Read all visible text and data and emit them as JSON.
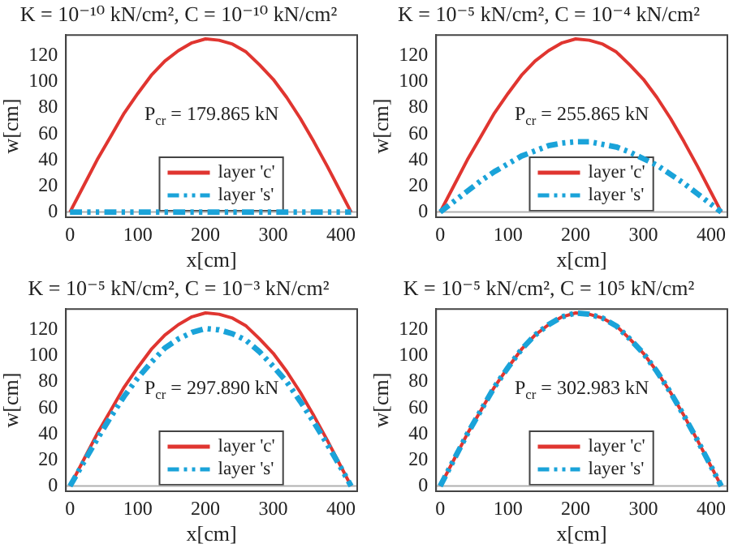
{
  "chart_data": [
    {
      "type": "line",
      "title": "K = 10⁻¹⁰ kN/cm², C = 10⁻¹⁰ kN/cm²",
      "xlabel": "x[cm]",
      "ylabel": "w[cm]",
      "xlim": [
        -6,
        424
      ],
      "ylim": [
        -4,
        136
      ],
      "xticks": [
        0,
        100,
        200,
        300,
        400
      ],
      "yticks": [
        0,
        20,
        40,
        60,
        80,
        100,
        120
      ],
      "grid": false,
      "legend": "bottom",
      "annotations": [
        "P$_{cr}$ = 179.865 kN"
      ],
      "ref_lines": [
        {
          "axis": "y",
          "value": 0,
          "color": "#b0b0b0"
        }
      ],
      "x": [
        0,
        20,
        40,
        60,
        80,
        100,
        120,
        140,
        160,
        180,
        200,
        220,
        240,
        260,
        280,
        300,
        320,
        340,
        360,
        380,
        400,
        415
      ],
      "series": [
        {
          "name": "layer 'c'",
          "color": "#e03530",
          "line_style": "solid",
          "values": [
            0,
            20,
            40,
            58,
            76,
            91,
            105,
            116,
            124,
            130,
            133,
            132,
            129,
            123,
            113,
            102,
            88,
            72,
            54,
            35,
            15,
            0
          ]
        },
        {
          "name": "layer 's'",
          "color": "#1aa3d9",
          "line_style": "dashed",
          "values": [
            0,
            0,
            0,
            0,
            0,
            0,
            0,
            0,
            0,
            0,
            0,
            0,
            0,
            0,
            0,
            0,
            0,
            0,
            0,
            0,
            0,
            0
          ]
        }
      ]
    },
    {
      "type": "line",
      "title": "K = 10⁻⁵ kN/cm², C = 10⁻⁴ kN/cm²",
      "xlabel": "x[cm]",
      "ylabel": "w[cm]",
      "xlim": [
        -6,
        424
      ],
      "ylim": [
        -4,
        136
      ],
      "xticks": [
        0,
        100,
        200,
        300,
        400
      ],
      "yticks": [
        0,
        20,
        40,
        60,
        80,
        100,
        120
      ],
      "grid": false,
      "legend": "bottom",
      "annotations": [
        "P$_{cr}$ = 255.865 kN"
      ],
      "ref_lines": [
        {
          "axis": "y",
          "value": 0,
          "color": "#b0b0b0"
        }
      ],
      "x": [
        0,
        20,
        40,
        60,
        80,
        100,
        120,
        140,
        160,
        180,
        200,
        220,
        240,
        260,
        280,
        300,
        320,
        340,
        360,
        380,
        400,
        415
      ],
      "series": [
        {
          "name": "layer 'c'",
          "color": "#e03530",
          "line_style": "solid",
          "values": [
            0,
            20,
            40,
            58,
            76,
            91,
            105,
            116,
            124,
            130,
            133,
            132,
            129,
            123,
            113,
            102,
            88,
            72,
            54,
            35,
            15,
            0
          ]
        },
        {
          "name": "layer 's'",
          "color": "#1aa3d9",
          "line_style": "dashed",
          "values": [
            0,
            8,
            16,
            24,
            31,
            37,
            43,
            47,
            51,
            53,
            54,
            54,
            52,
            50,
            46,
            41,
            36,
            29,
            22,
            14,
            6,
            0
          ]
        }
      ]
    },
    {
      "type": "line",
      "title": "K = 10⁻⁵ kN/cm², C = 10⁻³ kN/cm²",
      "xlabel": "x[cm]",
      "ylabel": "w[cm]",
      "xlim": [
        -6,
        424
      ],
      "ylim": [
        -4,
        136
      ],
      "xticks": [
        0,
        100,
        200,
        300,
        400
      ],
      "yticks": [
        0,
        20,
        40,
        60,
        80,
        100,
        120
      ],
      "grid": false,
      "legend": "bottom",
      "annotations": [
        "P$_{cr}$ = 297.890 kN"
      ],
      "ref_lines": [
        {
          "axis": "y",
          "value": 0,
          "color": "#b0b0b0"
        }
      ],
      "x": [
        0,
        20,
        40,
        60,
        80,
        100,
        120,
        140,
        160,
        180,
        200,
        220,
        240,
        260,
        280,
        300,
        320,
        340,
        360,
        380,
        400,
        415
      ],
      "series": [
        {
          "name": "layer 'c'",
          "color": "#e03530",
          "line_style": "solid",
          "values": [
            0,
            20,
            40,
            58,
            76,
            91,
            105,
            116,
            124,
            130,
            133,
            132,
            129,
            123,
            113,
            102,
            88,
            72,
            54,
            35,
            15,
            0
          ]
        },
        {
          "name": "layer 's'",
          "color": "#1aa3d9",
          "line_style": "dashed",
          "values": [
            0,
            18,
            36,
            53,
            69,
            83,
            95,
            106,
            113,
            118,
            121,
            120,
            117,
            112,
            103,
            92,
            80,
            65,
            49,
            32,
            14,
            0
          ]
        }
      ]
    },
    {
      "type": "line",
      "title": "K = 10⁻⁵ kN/cm², C = 10⁵ kN/cm²",
      "xlabel": "x[cm]",
      "ylabel": "w[cm]",
      "xlim": [
        -6,
        424
      ],
      "ylim": [
        -4,
        136
      ],
      "xticks": [
        0,
        100,
        200,
        300,
        400
      ],
      "yticks": [
        0,
        20,
        40,
        60,
        80,
        100,
        120
      ],
      "grid": false,
      "legend": "bottom",
      "annotations": [
        "P$_{cr}$ = 302.983 kN"
      ],
      "ref_lines": [
        {
          "axis": "y",
          "value": 0,
          "color": "#b0b0b0"
        }
      ],
      "x": [
        0,
        20,
        40,
        60,
        80,
        100,
        120,
        140,
        160,
        180,
        200,
        220,
        240,
        260,
        280,
        300,
        320,
        340,
        360,
        380,
        400,
        415
      ],
      "series": [
        {
          "name": "layer 'c'",
          "color": "#e03530",
          "line_style": "solid",
          "values": [
            0,
            20,
            40,
            58,
            76,
            91,
            105,
            116,
            124,
            130,
            133,
            132,
            129,
            123,
            113,
            102,
            88,
            72,
            54,
            35,
            15,
            0
          ]
        },
        {
          "name": "layer 's'",
          "color": "#1aa3d9",
          "line_style": "dashed",
          "values": [
            0,
            20,
            40,
            58,
            76,
            91,
            105,
            116,
            124,
            130,
            133,
            132,
            129,
            123,
            113,
            102,
            88,
            72,
            54,
            35,
            15,
            0
          ]
        }
      ]
    }
  ]
}
